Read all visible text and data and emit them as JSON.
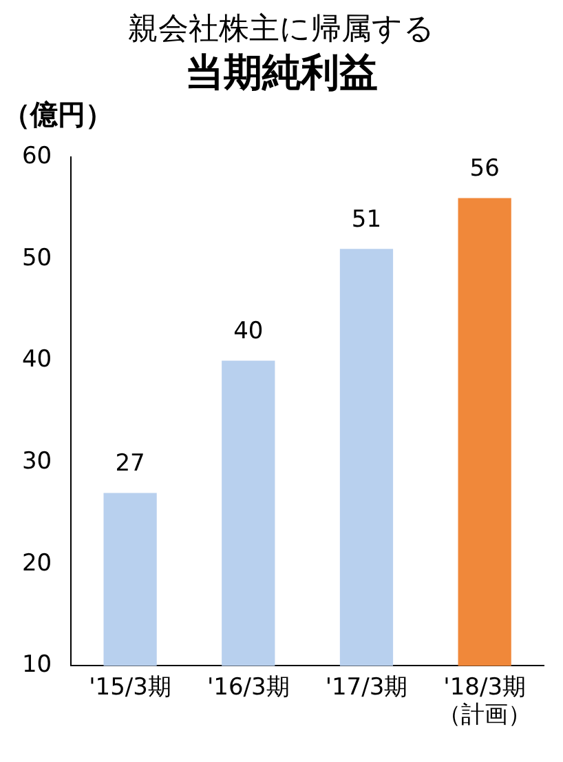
{
  "chart_data": {
    "type": "bar",
    "title": "親会社株主に帰属する",
    "subtitle": "当期純利益",
    "ylabel": "（億円）",
    "categories": [
      "'15/3期",
      "'16/3期",
      "'17/3期",
      "'18/3期（計画）"
    ],
    "values": [
      27,
      40,
      51,
      56
    ],
    "colors": [
      "#b8d0ee",
      "#b8d0ee",
      "#b8d0ee",
      "#f0883a"
    ],
    "ylim": [
      10,
      60
    ],
    "yticks": [
      10,
      20,
      30,
      40,
      50,
      60
    ],
    "grid": false,
    "legend": false,
    "data_labels": true
  }
}
